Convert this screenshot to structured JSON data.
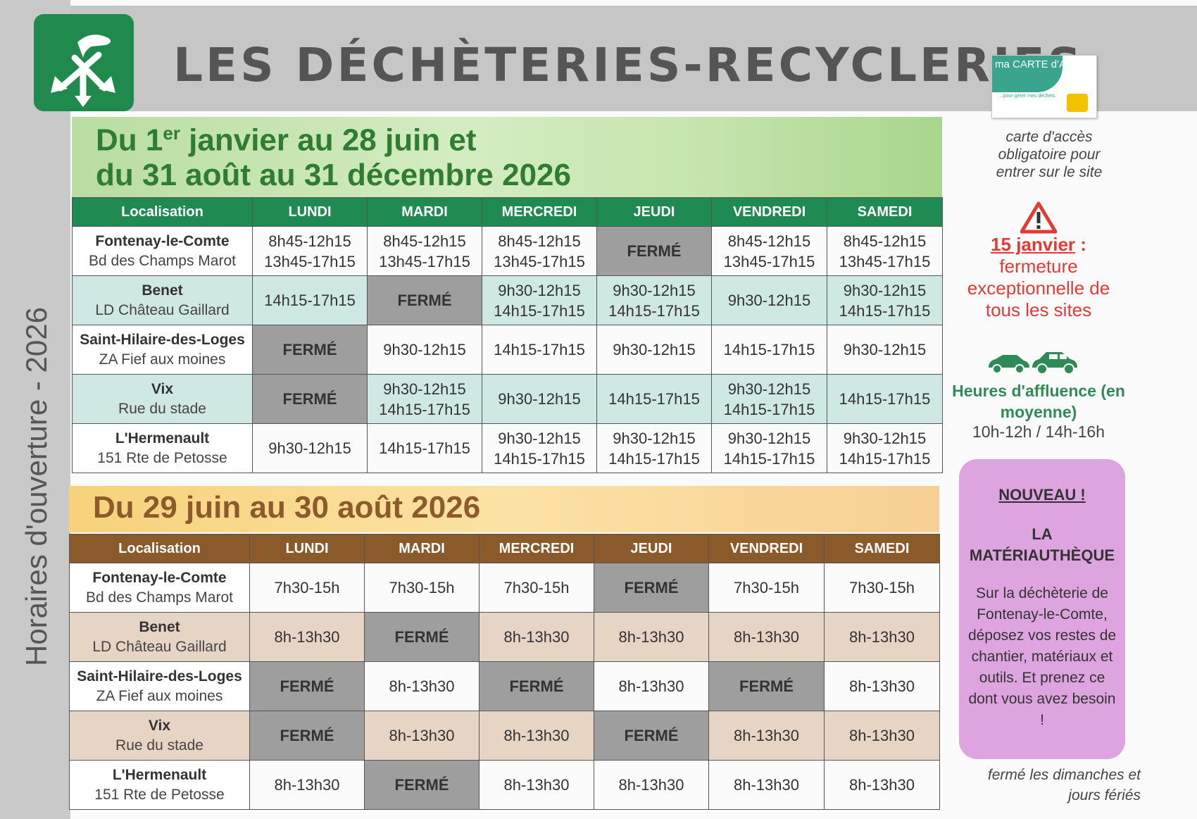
{
  "header": {
    "title": "LES DÉCHÈTERIES-RECYCLERIES"
  },
  "access_card": {
    "card_title": "ma CARTE d'ACCÈS",
    "card_sub": "...pour gérer mes déchets",
    "caption": "carte d'accès obligatoire pour entrer sur le site"
  },
  "vertical_label": "Horaires d'ouverture - 2026",
  "period1": {
    "title_part1": "Du 1",
    "title_sup": "er",
    "title_part2": " janvier au 28 juin et",
    "title_line2": "du 31 août au 31 décembre 2026"
  },
  "period2": {
    "title": "Du 29 juin au 30 août 2026"
  },
  "table_headers": [
    "Localisation",
    "LUNDI",
    "MARDI",
    "MERCREDI",
    "JEUDI",
    "VENDREDI",
    "SAMEDI"
  ],
  "table1_rows": [
    {
      "name": "Fontenay-le-Comte",
      "address": "Bd des Champs Marot",
      "days": [
        [
          "8h45-12h15",
          "13h45-17h15"
        ],
        [
          "8h45-12h15",
          "13h45-17h15"
        ],
        [
          "8h45-12h15",
          "13h45-17h15"
        ],
        [
          "FERMÉ"
        ],
        [
          "8h45-12h15",
          "13h45-17h15"
        ],
        [
          "8h45-12h15",
          "13h45-17h15"
        ]
      ]
    },
    {
      "name": "Benet",
      "address": "LD Château Gaillard",
      "days": [
        [
          "14h15-17h15"
        ],
        [
          "FERMÉ"
        ],
        [
          "9h30-12h15",
          "14h15-17h15"
        ],
        [
          "9h30-12h15",
          "14h15-17h15"
        ],
        [
          "9h30-12h15"
        ],
        [
          "9h30-12h15",
          "14h15-17h15"
        ]
      ]
    },
    {
      "name": "Saint-Hilaire-des-Loges",
      "address": "ZA Fief aux moines",
      "days": [
        [
          "FERMÉ"
        ],
        [
          "9h30-12h15"
        ],
        [
          "14h15-17h15"
        ],
        [
          "9h30-12h15"
        ],
        [
          "14h15-17h15"
        ],
        [
          "9h30-12h15"
        ]
      ]
    },
    {
      "name": "Vix",
      "address": "Rue du stade",
      "days": [
        [
          "FERMÉ"
        ],
        [
          "9h30-12h15",
          "14h15-17h15"
        ],
        [
          "9h30-12h15"
        ],
        [
          "14h15-17h15"
        ],
        [
          "9h30-12h15",
          "14h15-17h15"
        ],
        [
          "14h15-17h15"
        ]
      ]
    },
    {
      "name": "L'Hermenault",
      "address": "151 Rte de Petosse",
      "days": [
        [
          "9h30-12h15"
        ],
        [
          "14h15-17h15"
        ],
        [
          "9h30-12h15",
          "14h15-17h15"
        ],
        [
          "9h30-12h15",
          "14h15-17h15"
        ],
        [
          "9h30-12h15",
          "14h15-17h15"
        ],
        [
          "9h30-12h15",
          "14h15-17h15"
        ]
      ]
    }
  ],
  "table2_rows": [
    {
      "name": "Fontenay-le-Comte",
      "address": "Bd des Champs Marot",
      "days": [
        [
          "7h30-15h"
        ],
        [
          "7h30-15h"
        ],
        [
          "7h30-15h"
        ],
        [
          "FERMÉ"
        ],
        [
          "7h30-15h"
        ],
        [
          "7h30-15h"
        ]
      ]
    },
    {
      "name": "Benet",
      "address": "LD Château Gaillard",
      "days": [
        [
          "8h-13h30"
        ],
        [
          "FERMÉ"
        ],
        [
          "8h-13h30"
        ],
        [
          "8h-13h30"
        ],
        [
          "8h-13h30"
        ],
        [
          "8h-13h30"
        ]
      ]
    },
    {
      "name": "Saint-Hilaire-des-Loges",
      "address": "ZA Fief aux moines",
      "days": [
        [
          "FERMÉ"
        ],
        [
          "8h-13h30"
        ],
        [
          "FERMÉ"
        ],
        [
          "8h-13h30"
        ],
        [
          "FERMÉ"
        ],
        [
          "8h-13h30"
        ]
      ]
    },
    {
      "name": "Vix",
      "address": "Rue du stade",
      "days": [
        [
          "FERMÉ"
        ],
        [
          "8h-13h30"
        ],
        [
          "8h-13h30"
        ],
        [
          "FERMÉ"
        ],
        [
          "8h-13h30"
        ],
        [
          "8h-13h30"
        ]
      ]
    },
    {
      "name": "L'Hermenault",
      "address": "151 Rte de Petosse",
      "days": [
        [
          "8h-13h30"
        ],
        [
          "FERMÉ"
        ],
        [
          "8h-13h30"
        ],
        [
          "8h-13h30"
        ],
        [
          "8h-13h30"
        ],
        [
          "8h-13h30"
        ]
      ]
    }
  ],
  "closed_label": "FERMÉ",
  "warning": {
    "date": "15 janvier",
    "colon": " :",
    "text": "fermeture exceptionnelle de tous les sites"
  },
  "affluence": {
    "title": "Heures d'affluence (en moyenne)",
    "hours": "10h-12h / 14h-16h"
  },
  "materiautheque": {
    "badge": "NOUVEAU !",
    "title": "LA MATÉRIAUTHÈQUE",
    "body": "Sur la déchèterie de Fontenay-le-Comte, déposez vos restes de chantier, matériaux et outils. Et prenez ce dont vous avez besoin !"
  },
  "closed_note": "fermé les dimanches et jours fériés",
  "colors": {
    "green_header": "#1f8a52",
    "brown_header": "#8b5a2b",
    "closed_cell": "#9e9e9e",
    "alert_red": "#e53935",
    "purple_box": "#dda4df"
  }
}
